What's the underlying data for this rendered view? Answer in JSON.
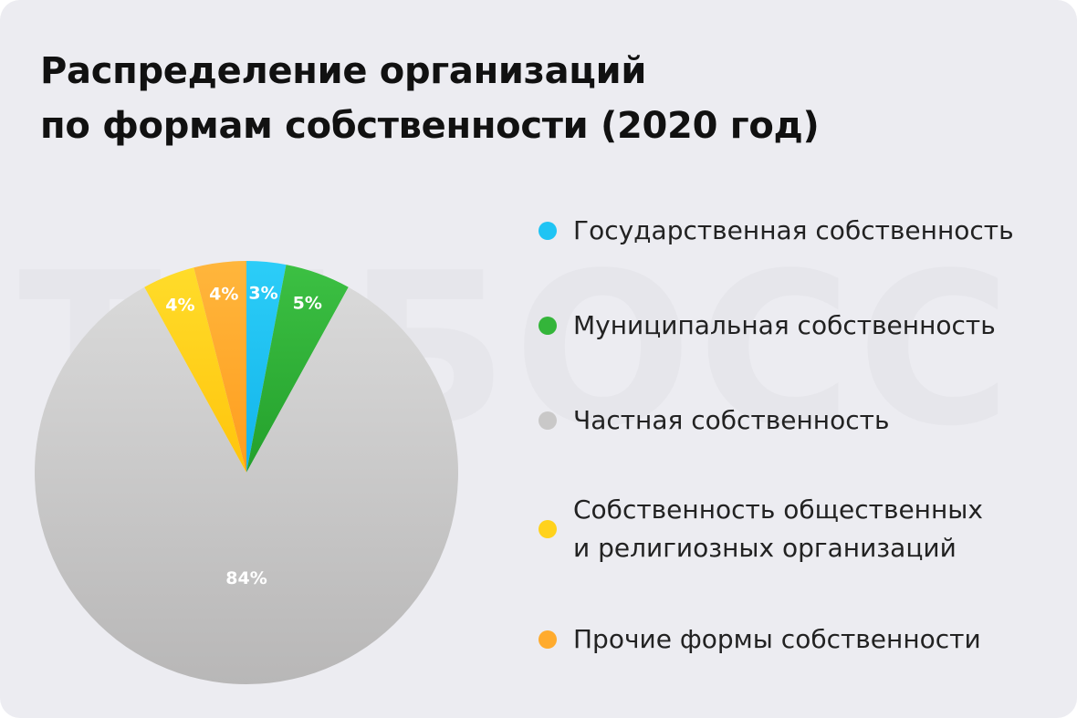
{
  "title_lines": [
    "Распределение организаций",
    "по формам собственности (2020 год)"
  ],
  "watermark": "ТИБОСС",
  "colors": {
    "background": "#ececf1",
    "blue": "#1fc4f4",
    "green": "#34b53a",
    "gray": "#c9c8c8",
    "yellow": "#ffd21c",
    "orange": "#ffab2e"
  },
  "chart_data": {
    "type": "pie",
    "start_angle_deg": 0,
    "direction": "clockwise",
    "slices": [
      {
        "name": "Государственная собственность",
        "value": 3,
        "label": "3%",
        "color": "#1fc4f4"
      },
      {
        "name": "Муниципальная собственность",
        "value": 5,
        "label": "5%",
        "color": "#34b53a"
      },
      {
        "name": "Частная собственность",
        "value": 84,
        "label": "84%",
        "color": "#c9c8c8"
      },
      {
        "name": "Собственность общественных\nи религиозных организаций",
        "value": 4,
        "label": "4%",
        "color": "#ffd21c"
      },
      {
        "name": "Прочие формы собственности",
        "value": 4,
        "label": "4%",
        "color": "#ffab2e"
      }
    ],
    "legend_position": "right"
  }
}
